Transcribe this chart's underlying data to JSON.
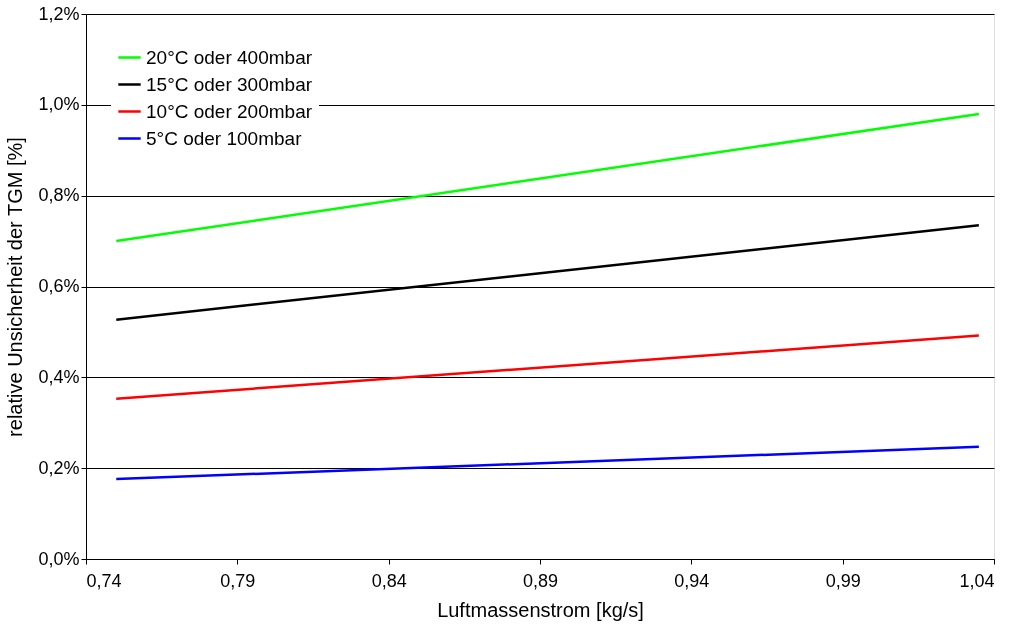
{
  "chart_data": {
    "type": "line",
    "xlabel": "Luftmassenstrom [kg/s]",
    "ylabel": "relative Unsicherheit der TGM [%]",
    "x": [
      0.75,
      1.035
    ],
    "series": [
      {
        "name": "20°C oder 400mbar",
        "color": "#00ff00",
        "values": [
          0.7,
          0.98
        ]
      },
      {
        "name": "15°C oder 300mbar",
        "color": "#000000",
        "values": [
          0.527,
          0.735
        ]
      },
      {
        "name": "10°C oder 200mbar",
        "color": "#ff0000",
        "values": [
          0.353,
          0.492
        ]
      },
      {
        "name": "5°C oder 100mbar",
        "color": "#0000ff",
        "values": [
          0.176,
          0.247
        ]
      }
    ],
    "xlim": [
      0.74,
      1.04
    ],
    "xticks": [
      {
        "value": 0.74,
        "label": "0,74"
      },
      {
        "value": 0.79,
        "label": "0,79"
      },
      {
        "value": 0.84,
        "label": "0,84"
      },
      {
        "value": 0.89,
        "label": "0,89"
      },
      {
        "value": 0.94,
        "label": "0,94"
      },
      {
        "value": 0.99,
        "label": "0,99"
      },
      {
        "value": 1.04,
        "label": "1,04"
      }
    ],
    "ylim": [
      0,
      1.2
    ],
    "yticks": [
      {
        "value": 0,
        "label": "0,0%"
      },
      {
        "value": 0.2,
        "label": "0,2%"
      },
      {
        "value": 0.4,
        "label": "0,4%"
      },
      {
        "value": 0.6,
        "label": "0,6%"
      },
      {
        "value": 0.8,
        "label": "0,8%"
      },
      {
        "value": 1.0,
        "label": "1,0%"
      },
      {
        "value": 1.2,
        "label": "1,2%"
      }
    ],
    "grid": "y",
    "legend": "top left",
    "marker": "none",
    "line_style": "solid"
  }
}
